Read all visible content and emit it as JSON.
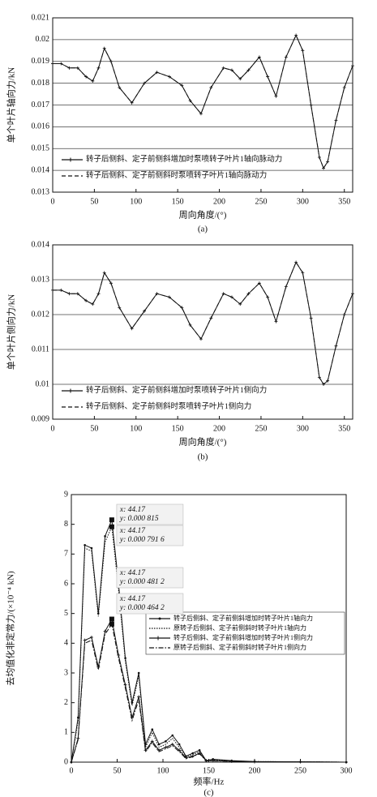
{
  "chart_data": [
    {
      "type": "line",
      "caption": "(a)",
      "x_label": "周向角度/(°)",
      "y_label": "单个叶片轴向力/kN",
      "x": [
        0,
        10,
        20,
        30,
        40,
        48,
        55,
        62,
        70,
        80,
        95,
        110,
        125,
        140,
        155,
        165,
        178,
        190,
        205,
        215,
        225,
        235,
        248,
        258,
        268,
        280,
        292,
        300,
        310,
        320,
        325,
        330,
        340,
        350,
        360
      ],
      "series": [
        {
          "name": "转子后侧斜、定子前侧斜增加时泵喷转子叶片1轴向脉动力",
          "color": "#111111",
          "style": "solid",
          "marker": "+",
          "values": [
            0.0189,
            0.0189,
            0.0187,
            0.0187,
            0.0183,
            0.0181,
            0.0187,
            0.0196,
            0.019,
            0.0178,
            0.0171,
            0.018,
            0.0185,
            0.0183,
            0.0179,
            0.0172,
            0.0166,
            0.0178,
            0.0187,
            0.0186,
            0.0182,
            0.0186,
            0.0192,
            0.0183,
            0.0174,
            0.0192,
            0.0202,
            0.0195,
            0.017,
            0.0146,
            0.0141,
            0.0144,
            0.0163,
            0.0178,
            0.0188
          ]
        },
        {
          "name": "转子后侧斜、定子前侧斜时泵喷转子叶片1轴向脉动力",
          "color": "#111111",
          "style": "dashed",
          "marker": "none",
          "values": [
            0.0189,
            0.0189,
            0.0187,
            0.0187,
            0.0183,
            0.0181,
            0.0187,
            0.0196,
            0.019,
            0.0178,
            0.0171,
            0.018,
            0.0185,
            0.0183,
            0.0179,
            0.0172,
            0.0166,
            0.0178,
            0.0187,
            0.0186,
            0.0182,
            0.0186,
            0.0192,
            0.0183,
            0.0174,
            0.0192,
            0.0202,
            0.0195,
            0.017,
            0.0146,
            0.0141,
            0.0144,
            0.0163,
            0.0178,
            0.0188
          ]
        }
      ],
      "xlim": [
        0,
        360
      ],
      "xticks": [
        0,
        50,
        100,
        150,
        200,
        250,
        300,
        350
      ],
      "ylim": [
        0.013,
        0.021
      ],
      "yticks": [
        0.013,
        0.014,
        0.015,
        0.016,
        0.017,
        0.018,
        0.019,
        0.02,
        0.021
      ],
      "grid": true,
      "legend": "lower left",
      "legend_frame": false
    },
    {
      "type": "line",
      "caption": "(b)",
      "x_label": "周向角度/(°)",
      "y_label": "单个叶片侧向力/kN",
      "x": [
        0,
        10,
        20,
        30,
        40,
        48,
        55,
        62,
        70,
        80,
        95,
        110,
        125,
        140,
        155,
        165,
        178,
        190,
        205,
        215,
        225,
        235,
        248,
        258,
        268,
        280,
        292,
        300,
        310,
        320,
        325,
        330,
        340,
        350,
        360
      ],
      "series": [
        {
          "name": "转子后侧斜、定子前侧斜增加时泵喷转子叶片1侧向力",
          "color": "#111111",
          "style": "solid",
          "marker": "+",
          "values": [
            0.0127,
            0.0127,
            0.0126,
            0.0126,
            0.0124,
            0.0123,
            0.0126,
            0.0132,
            0.0129,
            0.0122,
            0.0116,
            0.0121,
            0.0126,
            0.0125,
            0.0122,
            0.0117,
            0.0113,
            0.0119,
            0.0126,
            0.0125,
            0.0123,
            0.0126,
            0.0129,
            0.0125,
            0.0118,
            0.0128,
            0.0135,
            0.0132,
            0.0119,
            0.0102,
            0.01,
            0.0101,
            0.0111,
            0.012,
            0.0126
          ]
        },
        {
          "name": "转子后侧斜、定子前侧斜时泵喷转子叶片1侧向力",
          "color": "#111111",
          "style": "dashed",
          "marker": "none",
          "values": [
            0.0127,
            0.0127,
            0.0126,
            0.0126,
            0.0124,
            0.0123,
            0.0126,
            0.0132,
            0.0129,
            0.0122,
            0.0116,
            0.0121,
            0.0126,
            0.0125,
            0.0122,
            0.0117,
            0.0113,
            0.0119,
            0.0126,
            0.0125,
            0.0123,
            0.0126,
            0.0129,
            0.0125,
            0.0118,
            0.0128,
            0.0135,
            0.0132,
            0.0119,
            0.0102,
            0.01,
            0.0101,
            0.0111,
            0.012,
            0.0126
          ]
        }
      ],
      "xlim": [
        0,
        360
      ],
      "xticks": [
        0,
        50,
        100,
        150,
        200,
        250,
        300,
        350
      ],
      "ylim": [
        0.009,
        0.014
      ],
      "yticks": [
        0.009,
        0.01,
        0.011,
        0.012,
        0.013,
        0.014
      ],
      "grid": true,
      "legend": "lower left",
      "legend_frame": false
    },
    {
      "type": "line",
      "caption": "(c)",
      "x_label": "频率/Hz",
      "y_label": "去均值化非定常力/(×10⁻⁴ kN)",
      "x": [
        0,
        7.36,
        14.72,
        22.08,
        29.44,
        36.8,
        44.17,
        51.5,
        58.9,
        66.3,
        73.6,
        81,
        88.3,
        95.7,
        103,
        110.4,
        117.8,
        125.1,
        132.5,
        139.9,
        147.2,
        154.6,
        175,
        200,
        250,
        300
      ],
      "series": [
        {
          "name": "转子后侧斜、定子前侧斜增加时转子叶片1轴向力",
          "color": "#111111",
          "style": "solid",
          "marker": "dot",
          "values": [
            0,
            1.5,
            7.3,
            7.2,
            5.0,
            7.6,
            8.15,
            6.0,
            3.5,
            2.0,
            3.0,
            0.6,
            1.1,
            0.6,
            0.7,
            0.9,
            0.6,
            0.2,
            0.3,
            0.4,
            0.05,
            0.1,
            0.05,
            0.02,
            0.01,
            0
          ]
        },
        {
          "name": "原转子后侧斜、定子前侧斜时转子叶片1轴向力",
          "color": "#111111",
          "style": "dotted",
          "marker": "none",
          "values": [
            0,
            1.4,
            7.2,
            7.1,
            4.9,
            7.4,
            7.916,
            5.8,
            3.4,
            1.9,
            2.9,
            0.5,
            1.0,
            0.5,
            0.6,
            0.8,
            0.5,
            0.2,
            0.25,
            0.35,
            0.05,
            0.08,
            0.04,
            0.02,
            0.01,
            0
          ]
        },
        {
          "name": "转子后侧斜、定子前侧斜增加时转子叶片1侧向力",
          "color": "#111111",
          "style": "solid",
          "marker": "+",
          "values": [
            0,
            0.8,
            4.1,
            4.2,
            3.2,
            4.4,
            4.812,
            3.6,
            2.6,
            1.5,
            2.2,
            0.4,
            0.7,
            0.4,
            0.5,
            0.6,
            0.4,
            0.15,
            0.2,
            0.3,
            0.05,
            0.05,
            0.03,
            0.01,
            0.01,
            0
          ]
        },
        {
          "name": "原转子后侧斜、定子前侧斜时转子叶片1侧向力",
          "color": "#111111",
          "style": "dashdot",
          "marker": "none",
          "values": [
            0,
            0.75,
            4.0,
            4.1,
            3.1,
            4.3,
            4.642,
            3.5,
            2.5,
            1.4,
            2.1,
            0.35,
            0.65,
            0.35,
            0.45,
            0.55,
            0.35,
            0.12,
            0.18,
            0.28,
            0.04,
            0.04,
            0.03,
            0.01,
            0.01,
            0
          ]
        }
      ],
      "annotations": [
        [
          "x: 44.17",
          "y: 0.000 815"
        ],
        [
          "x: 44.17",
          "y: 0.000 791 6"
        ],
        [
          "x: 44.17",
          "y: 0.000 481 2"
        ],
        [
          "x: 44.17",
          "y: 0.000 464 2"
        ]
      ],
      "xlim": [
        0,
        300
      ],
      "xticks": [
        0,
        50,
        100,
        150,
        200,
        250,
        300
      ],
      "ylim": [
        0,
        9
      ],
      "yticks": [
        0,
        1,
        2,
        3,
        4,
        5,
        6,
        7,
        8,
        9
      ],
      "grid": false,
      "legend": "center right",
      "legend_frame": true
    }
  ]
}
